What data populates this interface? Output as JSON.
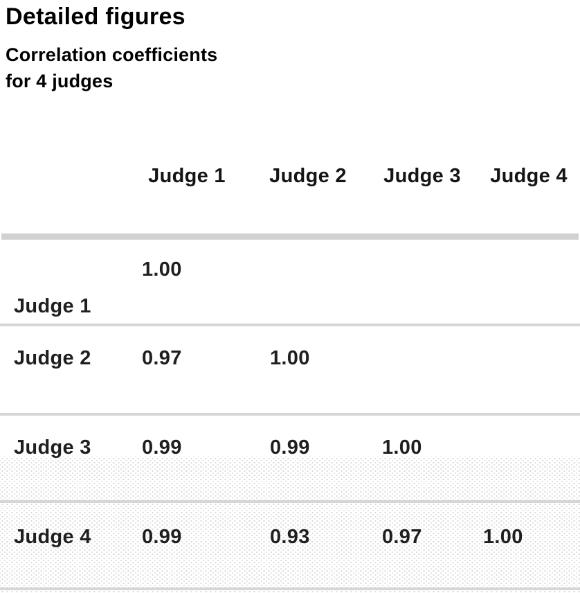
{
  "page": {
    "title": "Detailed figures",
    "subtitle_line1": "Correlation coefficients",
    "subtitle_line2": "for 4 judges"
  },
  "table": {
    "corner_label": "",
    "column_headers": [
      "Judge 1",
      "Judge 2",
      "Judge 3",
      "Judge 4"
    ],
    "rows": [
      {
        "label": "Judge 1",
        "values": [
          "1.00",
          "",
          "",
          ""
        ]
      },
      {
        "label": "Judge 2",
        "values": [
          "0.97",
          "1.00",
          "",
          ""
        ]
      },
      {
        "label": "Judge 3",
        "values": [
          "0.99",
          "0.99",
          "1.00",
          ""
        ]
      },
      {
        "label": "Judge 4",
        "values": [
          "0.99",
          "0.93",
          "0.97",
          "1.00"
        ]
      }
    ]
  },
  "colors": {
    "background": "#ffffff",
    "title_text": "#000000",
    "table_text": "#1f1f1f",
    "divider_thick": "#d1d1d1",
    "divider_thin": "#d6d6d6",
    "stipple_dot": "#dadada"
  },
  "chart_data": {
    "type": "table",
    "title": "Detailed figures",
    "subtitle": "Correlation coefficients for 4 judges",
    "columns": [
      "Judge 1",
      "Judge 2",
      "Judge 3",
      "Judge 4"
    ],
    "row_labels": [
      "Judge 1",
      "Judge 2",
      "Judge 3",
      "Judge 4"
    ],
    "matrix": [
      [
        1.0,
        null,
        null,
        null
      ],
      [
        0.97,
        1.0,
        null,
        null
      ],
      [
        0.99,
        0.99,
        1.0,
        null
      ],
      [
        0.99,
        0.93,
        0.97,
        1.0
      ]
    ],
    "layout": "lower-triangular correlation matrix, values shown to 2 decimals"
  }
}
